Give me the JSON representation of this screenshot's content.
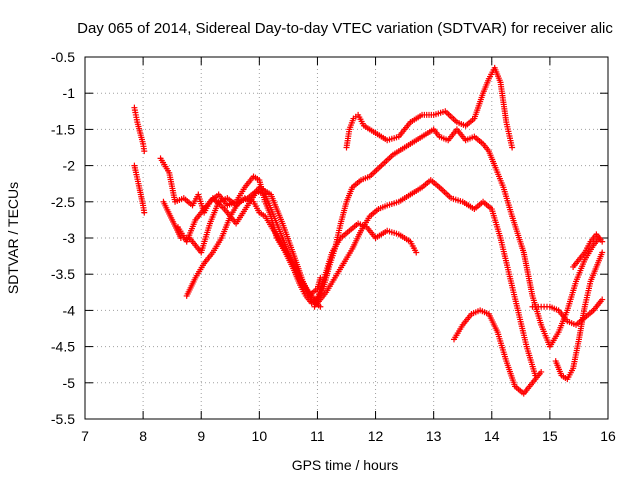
{
  "chart_data": {
    "type": "scatter",
    "title": "Day 065 of 2014, Sidereal Day-to-day VTEC variation (SDTVAR) for receiver alic",
    "xlabel": "GPS time / hours",
    "ylabel": "SDTVAR / TECUs",
    "xlim": [
      7,
      16
    ],
    "ylim": [
      -5.5,
      -0.5
    ],
    "xticks": [
      7,
      8,
      9,
      10,
      11,
      12,
      13,
      14,
      15,
      16
    ],
    "yticks": [
      -0.5,
      -1,
      -1.5,
      -2,
      -2.5,
      -3,
      -3.5,
      -4,
      -4.5,
      -5,
      -5.5
    ],
    "grid": true,
    "legend": "none",
    "marker": "+",
    "series_color": "#ff0000",
    "series": [
      {
        "x": [
          7.85,
          7.9,
          7.95,
          8.0,
          8.02
        ],
        "y": [
          -1.2,
          -1.4,
          -1.55,
          -1.7,
          -1.8
        ]
      },
      {
        "x": [
          7.85,
          7.92,
          8.0,
          8.02
        ],
        "y": [
          -2.0,
          -2.25,
          -2.55,
          -2.65
        ]
      },
      {
        "x": [
          8.3,
          8.45,
          8.55,
          8.7,
          8.85,
          8.95,
          9.05,
          9.15,
          9.3,
          9.45,
          9.6,
          9.75,
          9.9,
          10.0,
          10.1,
          10.2,
          10.3,
          10.45,
          10.6,
          10.7,
          10.8,
          10.9,
          11.0,
          11.1,
          11.2,
          11.3,
          11.4,
          11.5,
          11.6,
          11.75,
          11.9,
          12.1,
          12.3,
          12.5,
          12.7,
          12.9,
          13.0,
          13.1,
          13.25,
          13.4,
          13.55,
          13.7,
          13.85,
          13.95,
          14.05,
          14.2,
          14.35,
          14.55,
          14.7,
          14.85,
          15.0,
          15.15,
          15.3,
          15.45,
          15.6,
          15.75,
          15.85
        ],
        "y": [
          -1.9,
          -2.1,
          -2.5,
          -2.45,
          -2.55,
          -2.4,
          -2.65,
          -2.5,
          -2.4,
          -2.55,
          -2.5,
          -2.3,
          -2.15,
          -2.2,
          -2.5,
          -2.7,
          -3.0,
          -3.2,
          -3.45,
          -3.65,
          -3.8,
          -3.9,
          -3.85,
          -3.7,
          -3.4,
          -3.15,
          -2.8,
          -2.5,
          -2.3,
          -2.2,
          -2.15,
          -2.0,
          -1.85,
          -1.75,
          -1.65,
          -1.55,
          -1.5,
          -1.6,
          -1.65,
          -1.5,
          -1.65,
          -1.6,
          -1.7,
          -1.8,
          -2.0,
          -2.3,
          -2.7,
          -3.2,
          -3.8,
          -4.2,
          -4.5,
          -4.3,
          -4.0,
          -3.6,
          -3.3,
          -3.1,
          -3.0
        ]
      },
      {
        "x": [
          8.35,
          8.5,
          8.65,
          8.8,
          9.0,
          9.15,
          9.3,
          9.45,
          9.6,
          9.75,
          9.9,
          10.0,
          10.1,
          10.25,
          10.4,
          10.55,
          10.7,
          10.85,
          11.0,
          11.15,
          11.3,
          11.45,
          11.6,
          11.75,
          11.9,
          12.05,
          12.2,
          12.4,
          12.6,
          12.8,
          12.95,
          13.1,
          13.3,
          13.5,
          13.7,
          13.85,
          14.0,
          14.15,
          14.3,
          14.45,
          14.6,
          14.75
        ],
        "y": [
          -2.5,
          -2.75,
          -3.0,
          -3.0,
          -3.2,
          -2.8,
          -2.5,
          -2.45,
          -2.55,
          -2.45,
          -2.5,
          -2.65,
          -2.7,
          -2.9,
          -3.1,
          -3.3,
          -3.55,
          -3.75,
          -3.9,
          -3.75,
          -3.55,
          -3.35,
          -3.15,
          -2.9,
          -2.7,
          -2.6,
          -2.55,
          -2.5,
          -2.4,
          -2.3,
          -2.2,
          -2.3,
          -2.45,
          -2.5,
          -2.6,
          -2.5,
          -2.6,
          -3.0,
          -3.5,
          -4.0,
          -4.5,
          -4.9
        ]
      },
      {
        "x": [
          8.75,
          8.9,
          9.05,
          9.2,
          9.35,
          9.5,
          9.65,
          9.8,
          9.95,
          10.1,
          10.25,
          10.4,
          10.55,
          10.7,
          10.85,
          11.0,
          11.05
        ],
        "y": [
          -3.8,
          -3.55,
          -3.35,
          -3.2,
          -3.0,
          -2.7,
          -2.5,
          -2.45,
          -2.35,
          -2.4,
          -2.7,
          -3.0,
          -3.3,
          -3.6,
          -3.8,
          -3.7,
          -3.55
        ]
      },
      {
        "x": [
          8.6,
          8.75,
          8.9,
          9.05,
          9.2,
          9.4,
          9.6,
          9.8,
          10.0,
          10.2,
          10.4,
          10.6,
          10.75,
          10.9,
          11.05
        ],
        "y": [
          -2.85,
          -3.05,
          -2.75,
          -2.6,
          -2.45,
          -2.6,
          -2.8,
          -2.55,
          -2.3,
          -2.4,
          -2.8,
          -3.25,
          -3.6,
          -3.85,
          -3.95
        ]
      },
      {
        "x": [
          10.95,
          11.1,
          11.25,
          11.4,
          11.55,
          11.7,
          11.85,
          12.0,
          12.2,
          12.4,
          12.6,
          12.7
        ],
        "y": [
          -3.95,
          -3.6,
          -3.2,
          -3.0,
          -2.9,
          -2.8,
          -2.85,
          -3.0,
          -2.9,
          -2.95,
          -3.05,
          -3.2
        ]
      },
      {
        "x": [
          11.5,
          11.55,
          11.62,
          11.7,
          11.8,
          12.0,
          12.2,
          12.4,
          12.6,
          12.8,
          13.0,
          13.2,
          13.4,
          13.55,
          13.7,
          13.85,
          13.95,
          14.05,
          14.15,
          14.25,
          14.35
        ],
        "y": [
          -1.75,
          -1.5,
          -1.35,
          -1.3,
          -1.45,
          -1.55,
          -1.65,
          -1.6,
          -1.4,
          -1.3,
          -1.3,
          -1.25,
          -1.4,
          -1.45,
          -1.35,
          -1.0,
          -0.8,
          -0.65,
          -0.85,
          -1.4,
          -1.75
        ]
      },
      {
        "x": [
          13.35,
          13.5,
          13.65,
          13.8,
          13.95,
          14.1,
          14.25,
          14.4,
          14.55,
          14.7,
          14.85
        ],
        "y": [
          -4.4,
          -4.2,
          -4.05,
          -4.0,
          -4.05,
          -4.3,
          -4.7,
          -5.05,
          -5.15,
          -5.0,
          -4.85
        ]
      },
      {
        "x": [
          14.7,
          14.85,
          15.0,
          15.15,
          15.3,
          15.45,
          15.6,
          15.75,
          15.9
        ],
        "y": [
          -3.95,
          -3.95,
          -3.95,
          -4.0,
          -4.15,
          -4.2,
          -4.1,
          -4.0,
          -3.85
        ]
      },
      {
        "x": [
          15.1,
          15.2,
          15.3,
          15.4,
          15.5,
          15.6,
          15.7,
          15.8,
          15.9
        ],
        "y": [
          -4.7,
          -4.9,
          -4.95,
          -4.8,
          -4.4,
          -3.95,
          -3.6,
          -3.4,
          -3.2
        ]
      },
      {
        "x": [
          15.4,
          15.5,
          15.6,
          15.7,
          15.8,
          15.9
        ],
        "y": [
          -3.4,
          -3.3,
          -3.2,
          -3.05,
          -2.95,
          -3.05
        ]
      }
    ]
  }
}
